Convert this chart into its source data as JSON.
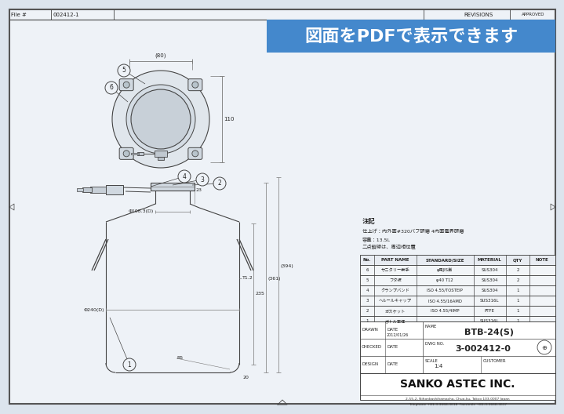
{
  "bg_color": "#dce4ed",
  "paper_color": "#eef2f7",
  "white": "#ffffff",
  "line_color": "#444444",
  "thin_line": "#777777",
  "cl_color": "#6688bb",
  "blue_banner_bg": "#4488cc",
  "blue_banner_text": "図面をPDFで表示できます",
  "file_label": "File #",
  "file_number": "002412-1",
  "title_name": "BTB-24(S)",
  "dwg_no": "3-002412-0",
  "scale_val": "1:4",
  "company": "SANKO ASTEC INC.",
  "drawn_label": "DRAWN",
  "checked_label": "CHECKED",
  "design_label": "DESIGN",
  "date_label": "DATE",
  "date_value": "2012/01/26",
  "name_label": "NAME",
  "dwg_no_label": "DWG NO.",
  "scale_label": "SCALE",
  "customer_label": "CUSTOMER",
  "revisions_label": "REVISIONS",
  "notes_title": "注記",
  "notes_line1": "仕上げ：内外面#320バフ研磨 4内面電界研磨",
  "notes_line2": "容量：13.5L",
  "notes_line3": "二点鎖線は、周辺相位置",
  "part_name_header": "PART NAME",
  "std_size_header": "STANDARD/SIZE",
  "material_header": "MATERIAL",
  "qty_header": "QTY",
  "note_header": "NOTE",
  "no_header": "No.",
  "parts": [
    {
      "no": "6",
      "name": "サニタリー索手",
      "std": "φ用JIS単",
      "mat": "SUS304",
      "qty": "2"
    },
    {
      "no": "5",
      "name": "フタ板",
      "std": "φ40 T12",
      "mat": "SUS304",
      "qty": "2"
    },
    {
      "no": "4",
      "name": "クランプバンド",
      "std": "ISO 4.55/TOSTEIP",
      "mat": "SUS304",
      "qty": "1"
    },
    {
      "no": "3",
      "name": "ヘルールキャップ",
      "std": "ISO 4.55/16AMD",
      "mat": "SUS316L",
      "qty": "1"
    },
    {
      "no": "2",
      "name": "ガスケット",
      "std": "ISO 4.55/4IMP",
      "mat": "PTFE",
      "qty": "1"
    },
    {
      "no": "1",
      "name": "ボトル本体",
      "std": "",
      "mat": "SUS316L",
      "qty": "1"
    }
  ],
  "dim_180": "(80)",
  "dim_110": "110",
  "dim_108_3": "Φ108.3(D)",
  "dim_240": "Φ240(D)",
  "dim_235": "235",
  "dim_361": "(361)",
  "dim_394": "(394)",
  "dim_t12": "T1.2",
  "dim_r5": "R5",
  "dim_20": "20",
  "dim_23": "23",
  "address": "2-55-2, Nihonbashihamacho, Chuo-ku, Tokyo 103-0007 Japan",
  "tel": "Telephone +81-3-3668-3618  Facsimile +81-3-3668-3617"
}
